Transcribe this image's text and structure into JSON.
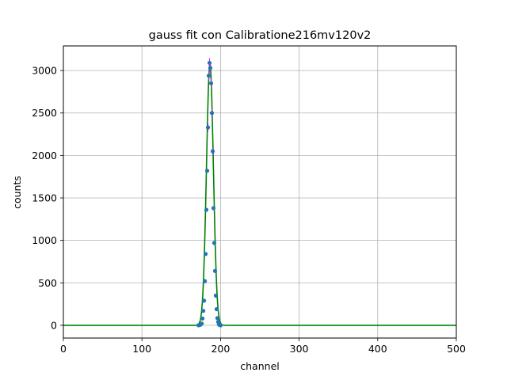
{
  "chart_data": {
    "type": "scatter",
    "title": "gauss fit con Calibratione216mv120v2",
    "xlabel": "channel",
    "ylabel": "counts",
    "xlim": [
      0,
      500
    ],
    "ylim": [
      -150,
      3290
    ],
    "xticks": [
      0,
      100,
      200,
      300,
      400,
      500
    ],
    "yticks": [
      0,
      500,
      1000,
      1500,
      2000,
      2500,
      3000
    ],
    "grid": true,
    "colors": {
      "points": "#1f77b4",
      "fit": "#008000",
      "errorbar": "#ff00ff"
    },
    "series": [
      {
        "kind": "points",
        "x": [
          172,
          174,
          176,
          177,
          178,
          179,
          180,
          181,
          182,
          183,
          184,
          185,
          186,
          187,
          188,
          189,
          190,
          191,
          192,
          193,
          194,
          195,
          196,
          197,
          198,
          199,
          200
        ],
        "y": [
          0,
          5,
          20,
          80,
          170,
          290,
          520,
          840,
          1360,
          1820,
          2330,
          2940,
          3090,
          3030,
          2850,
          2500,
          2050,
          1380,
          970,
          640,
          350,
          190,
          85,
          40,
          10,
          2,
          0
        ]
      },
      {
        "kind": "fit",
        "model": "gaussian",
        "amplitude": 3080,
        "mean": 186.5,
        "sigma": 4.4,
        "baseline": 0,
        "x_range": [
          0,
          500
        ]
      }
    ]
  }
}
